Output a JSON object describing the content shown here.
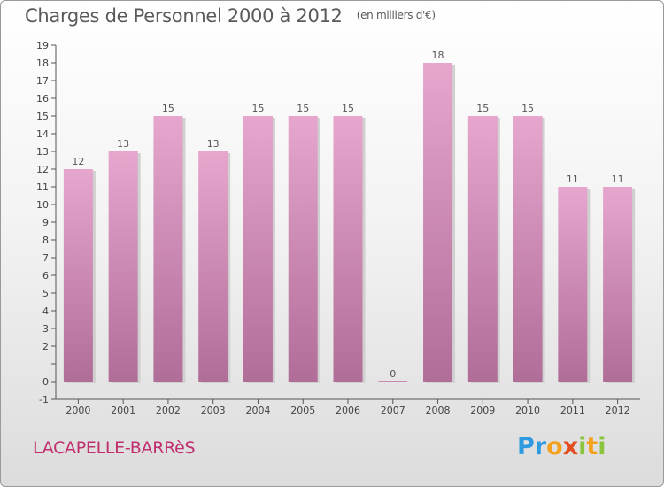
{
  "header": {
    "title": "Charges de Personnel 2000 à 2012",
    "unit_note": "(en milliers d'€)"
  },
  "footer": {
    "commune": "LACAPELLE-BARRèS",
    "logo": [
      "P",
      "r",
      "o",
      "x",
      "i",
      "t",
      "i"
    ]
  },
  "colors": {
    "bar_top": "#e6a6cd",
    "bar_bottom": "#b06d98",
    "commune_label": "#c0306e"
  },
  "chart_data": {
    "type": "bar",
    "title": "Charges de Personnel 2000 à 2012",
    "subtitle": "(en milliers d'€)",
    "categories": [
      "2000",
      "2001",
      "2002",
      "2003",
      "2004",
      "2005",
      "2006",
      "2007",
      "2008",
      "2009",
      "2010",
      "2011",
      "2012"
    ],
    "values": [
      12,
      13,
      15,
      13,
      15,
      15,
      15,
      0,
      18,
      15,
      15,
      11,
      11
    ],
    "ylim": [
      -1,
      19
    ],
    "yticks": [
      -1,
      0,
      1,
      2,
      3,
      4,
      5,
      6,
      7,
      8,
      9,
      10,
      11,
      12,
      13,
      14,
      15,
      16,
      17,
      18,
      19
    ],
    "ytick_labels": [
      "-1",
      "0",
      "",
      "2",
      "3",
      "4",
      "5",
      "6",
      "7",
      "8",
      "9",
      "10",
      "11",
      "12",
      "13",
      "14",
      "15",
      "16",
      "17",
      "18",
      "19"
    ],
    "grid": false,
    "legend": "none"
  }
}
